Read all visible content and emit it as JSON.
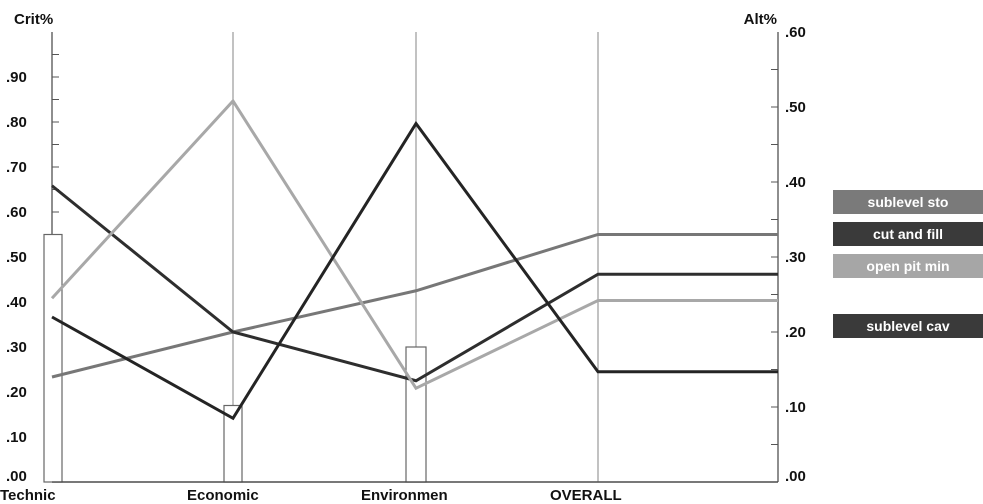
{
  "chart_data": {
    "type": "line",
    "categories": [
      "Technic",
      "Economic",
      "Environmen",
      "OVERALL"
    ],
    "left_axis": {
      "title": "Crit%",
      "range": [
        0,
        1.0
      ],
      "ticks": [
        ".00",
        ".10",
        ".20",
        ".30",
        ".40",
        ".50",
        ".60",
        ".70",
        ".80",
        ".90"
      ],
      "tick_values": [
        0,
        0.1,
        0.2,
        0.3,
        0.4,
        0.5,
        0.6,
        0.7,
        0.8,
        0.9
      ]
    },
    "right_axis": {
      "title": "Alt%",
      "range": [
        0,
        0.6
      ],
      "ticks": [
        ".00",
        ".10",
        ".20",
        ".30",
        ".40",
        ".50",
        ".60"
      ],
      "tick_values": [
        0,
        0.1,
        0.2,
        0.3,
        0.4,
        0.5,
        0.6
      ]
    },
    "criteria_weights": [
      0.55,
      0.17,
      0.3
    ],
    "series": [
      {
        "name": "sublevel sto",
        "color": "#777777",
        "values": [
          0.14,
          0.2,
          0.255,
          0.33
        ]
      },
      {
        "name": "cut and fill",
        "color": "#2e2e2e",
        "values": [
          0.395,
          0.2,
          0.135,
          0.277
        ]
      },
      {
        "name": "open pit min",
        "color": "#a8a8a8",
        "values": [
          0.245,
          0.508,
          0.125,
          0.242
        ]
      },
      {
        "name": "sublevel cav",
        "color": "#242424",
        "values": [
          0.22,
          0.085,
          0.478,
          0.147
        ]
      }
    ],
    "legend": {
      "placement": "right",
      "items": [
        {
          "name": "sublevel sto",
          "color": "#7a7a7a"
        },
        {
          "name": "cut and fill",
          "color": "#3a3a3a"
        },
        {
          "name": "open pit min",
          "color": "#a6a6a6"
        },
        {
          "name": "sublevel cav",
          "color": "#3a3a3a"
        }
      ]
    }
  }
}
